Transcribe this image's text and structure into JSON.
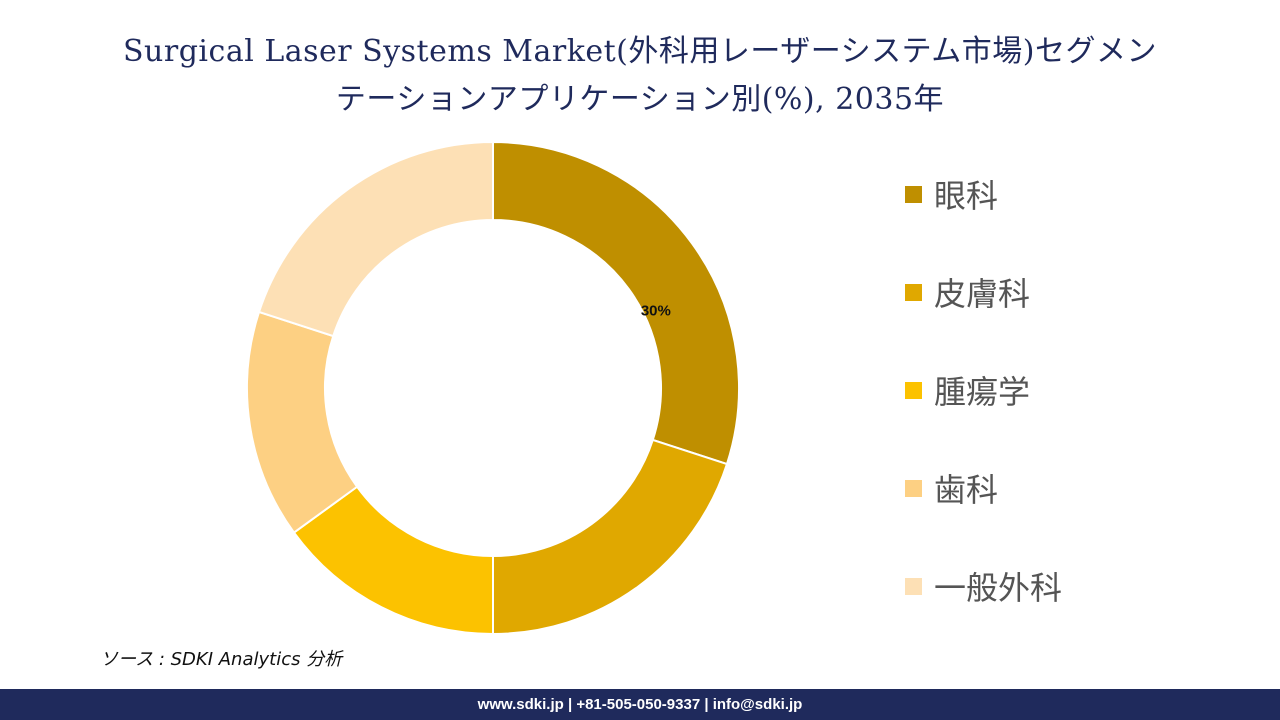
{
  "title_line1": "Surgical Laser Systems Market(外科用レーザーシステム市場)セグメン",
  "title_line2": "テーションアプリケーション別(%), 2035年",
  "source": "ソース : SDKI Analytics  分析",
  "footer": "www.sdki.jp | +81-505-050-9337 | info@sdki.jp",
  "chart_data": {
    "type": "pie",
    "donut": true,
    "categories": [
      "眼科",
      "皮膚科",
      "腫瘍学",
      "歯科",
      "一般外科"
    ],
    "values": [
      30,
      20,
      15,
      15,
      20
    ],
    "data_labels": [
      "30%",
      "",
      "",
      "",
      ""
    ],
    "colors": [
      "#bf8f00",
      "#e0a800",
      "#fcc200",
      "#fdd083",
      "#fde0b5"
    ],
    "legend_position": "right"
  }
}
